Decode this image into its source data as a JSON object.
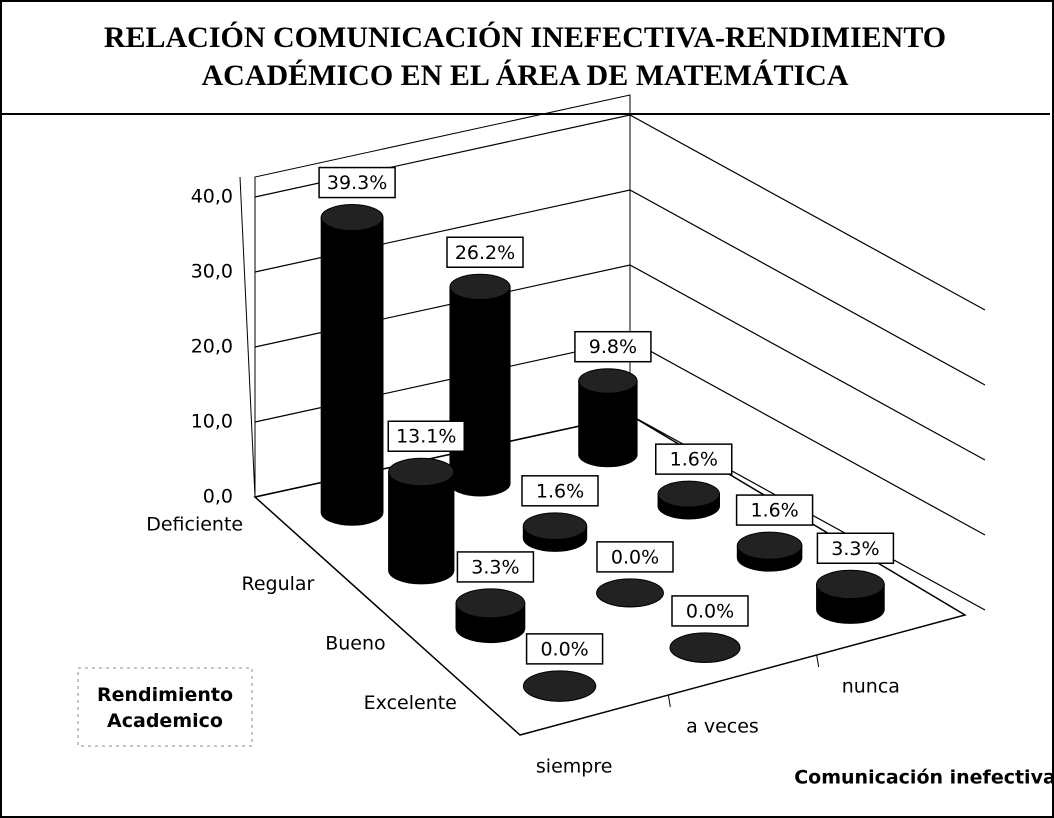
{
  "chart_data": {
    "type": "bar3d",
    "title": "RELACIÓN COMUNICACIÓN INEFECTIVA-RENDIMIENTO ACADÉMICO EN EL ÁREA DE MATEMÁTICA",
    "x_label": "Rendimiento Academico",
    "series_label": "Comunicación inefectiva",
    "categories": [
      "Deficiente",
      "Regular",
      "Bueno",
      "Excelente"
    ],
    "series": [
      {
        "name": "siempre",
        "color": "#000000",
        "values": [
          39.3,
          13.1,
          3.3,
          0.0
        ],
        "value_labels": [
          "39.3%",
          "13.1%",
          "3.3%",
          "0.0%"
        ]
      },
      {
        "name": "a veces",
        "color": "#000000",
        "values": [
          26.2,
          1.6,
          0.0,
          0.0
        ],
        "value_labels": [
          "26.2%",
          "1.6%",
          "0.0%",
          "0.0%"
        ]
      },
      {
        "name": "nunca",
        "color": "#000000",
        "values": [
          9.8,
          1.6,
          1.6,
          3.3
        ],
        "value_labels": [
          "9.8%",
          "1.6%",
          "1.6%",
          "3.3%"
        ]
      }
    ],
    "ylim": [
      0,
      40
    ],
    "yticks": [
      {
        "value": 0,
        "label": "0,0"
      },
      {
        "value": 10,
        "label": "10,0"
      },
      {
        "value": 20,
        "label": "20,0"
      },
      {
        "value": 30,
        "label": "30,0"
      },
      {
        "value": 40,
        "label": "40,0"
      }
    ],
    "grid": true
  }
}
